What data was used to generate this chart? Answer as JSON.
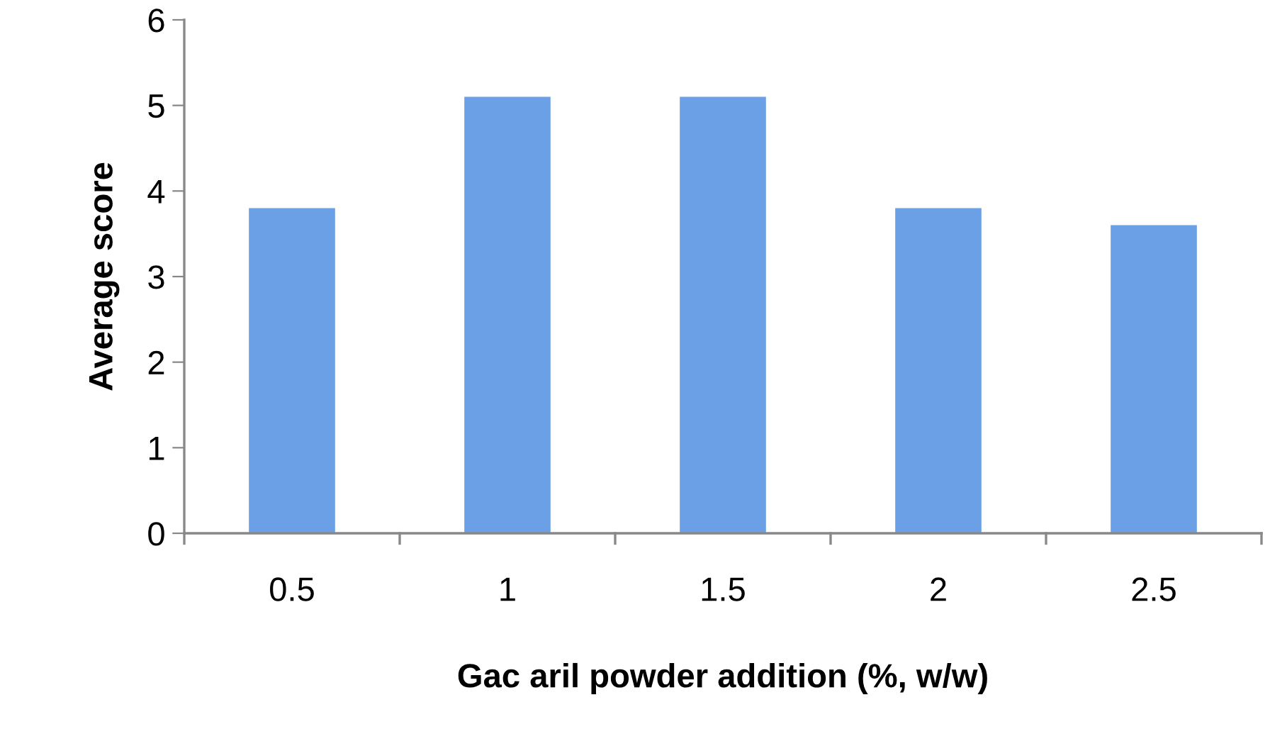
{
  "chart_data": {
    "type": "bar",
    "xlabel": "Gac aril powder addition (%, w/w)",
    "ylabel": "Average score",
    "categories": [
      "0.5",
      "1",
      "1.5",
      "2",
      "2.5"
    ],
    "values": [
      3.8,
      5.1,
      5.1,
      3.8,
      3.6
    ],
    "color": "#6b9fe6",
    "ylim": [
      0,
      6
    ],
    "yticks": [
      0,
      1,
      2,
      3,
      4,
      5,
      6
    ],
    "grid": false,
    "legend": false
  }
}
